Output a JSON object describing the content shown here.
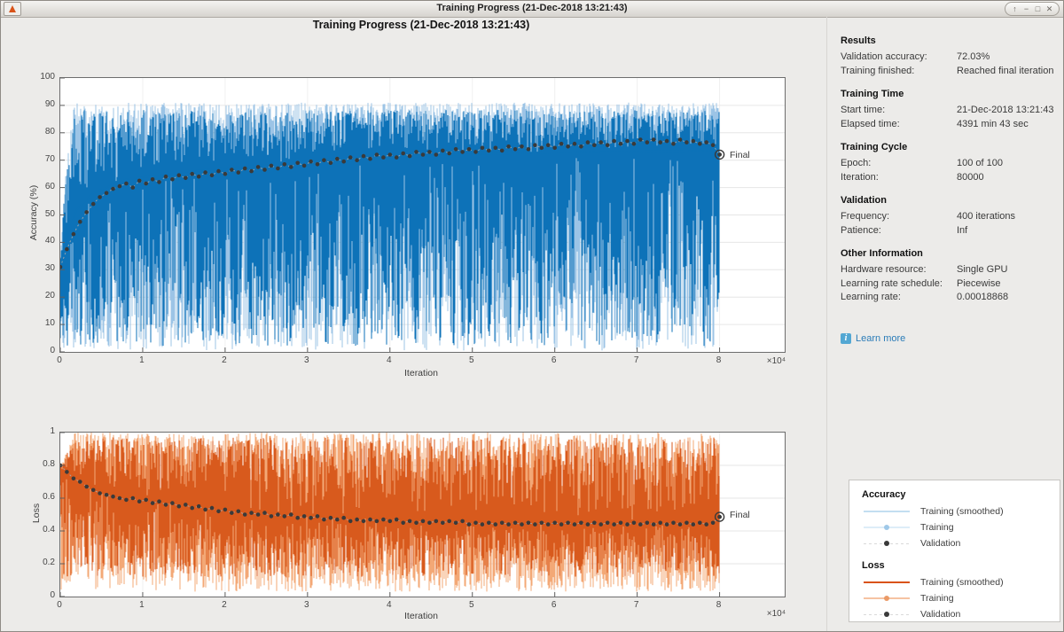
{
  "window": {
    "title": "Training Progress (21-Dec-2018 13:21:43)",
    "control_glyphs": {
      "shade": "↑",
      "minimize": "−",
      "maximize": "□",
      "close": "✕"
    }
  },
  "figure_title": "Training Progress (21-Dec-2018 13:21:43)",
  "colors": {
    "background": "#ecebe9",
    "accuracy_raw": "#9cc4e6",
    "accuracy_smoothed": "#0d72b8",
    "loss_raw": "#f3a876",
    "loss_smoothed": "#d85a1d",
    "validation_marker": "#3a3a3a",
    "link": "#2b7cb8"
  },
  "right_panel": {
    "sections": [
      {
        "heading": "Results",
        "rows": [
          [
            "Validation accuracy:",
            "72.03%"
          ],
          [
            "Training finished:",
            "Reached final iteration"
          ]
        ]
      },
      {
        "heading": "Training Time",
        "rows": [
          [
            "Start time:",
            "21-Dec-2018 13:21:43"
          ],
          [
            "Elapsed time:",
            "4391 min 43 sec"
          ]
        ]
      },
      {
        "heading": "Training Cycle",
        "rows": [
          [
            "Epoch:",
            "100 of 100"
          ],
          [
            "Iteration:",
            "80000"
          ]
        ]
      },
      {
        "heading": "Validation",
        "rows": [
          [
            "Frequency:",
            "400 iterations"
          ],
          [
            "Patience:",
            "Inf"
          ]
        ]
      },
      {
        "heading": "Other Information",
        "rows": [
          [
            "Hardware resource:",
            "Single GPU"
          ],
          [
            "Learning rate schedule:",
            "Piecewise"
          ],
          [
            "Learning rate:",
            "0.00018868"
          ]
        ]
      }
    ],
    "learn_more": "Learn more"
  },
  "legend": {
    "groups": [
      {
        "heading": "Accuracy",
        "entries": [
          {
            "label": "Training (smoothed)",
            "style": "line",
            "color": "#c3def1"
          },
          {
            "label": "Training",
            "style": "line-dot",
            "color": "#ddedf8",
            "dot": "#9fc8e8"
          },
          {
            "label": "Validation",
            "style": "dash-dot",
            "color": "#d9d9d9",
            "dot": "#3a3a3a"
          }
        ]
      },
      {
        "heading": "Loss",
        "entries": [
          {
            "label": "Training (smoothed)",
            "style": "line",
            "color": "#d95319"
          },
          {
            "label": "Training",
            "style": "line-dot",
            "color": "#f6c3a2",
            "dot": "#eb9a67"
          },
          {
            "label": "Validation",
            "style": "dash-dot",
            "color": "#d9d9d9",
            "dot": "#3a3a3a"
          }
        ]
      }
    ]
  },
  "chart_data": [
    {
      "type": "line",
      "title": "",
      "ylabel": "Accuracy (%)",
      "xlabel": "Iteration",
      "x_exponent_label": "×10⁴",
      "final_label": "Final",
      "final_value": 72.03,
      "ylim": [
        0,
        100
      ],
      "xlim": [
        0,
        87900
      ],
      "grid": true,
      "y_ticks": [
        0,
        10,
        20,
        30,
        40,
        50,
        60,
        70,
        80,
        90,
        100
      ],
      "y_tick_labels": [
        "0",
        "10",
        "20",
        "30",
        "40",
        "50",
        "60",
        "70",
        "80",
        "90",
        "100"
      ],
      "x_ticks": [
        0,
        10000,
        20000,
        30000,
        40000,
        50000,
        60000,
        70000,
        80000
      ],
      "x_tick_labels": [
        "0",
        "1",
        "2",
        "3",
        "4",
        "5",
        "6",
        "7",
        "8"
      ],
      "trend": [
        [
          0,
          30
        ],
        [
          800,
          42
        ],
        [
          2000,
          52
        ],
        [
          4000,
          58
        ],
        [
          8000,
          63
        ],
        [
          16000,
          66
        ],
        [
          24000,
          68
        ],
        [
          32000,
          70
        ],
        [
          48000,
          72
        ],
        [
          64000,
          73
        ],
        [
          80000,
          73.5
        ]
      ],
      "noise": {
        "seed": 91,
        "upper_limit": 91,
        "lower_limit": 0.5
      },
      "series": [
        {
          "name": "Training",
          "type": "noisy-raw",
          "color": "#9cc4e6"
        },
        {
          "name": "Training (smoothed)",
          "type": "noisy-smoothed",
          "color": "#0d72b8"
        },
        {
          "name": "Validation",
          "type": "points",
          "color": "#3a3a3a",
          "step": 800,
          "values": [
            31,
            37.5,
            43,
            47.5,
            51,
            54,
            56.5,
            58,
            59.5,
            60.5,
            61.5,
            60,
            62.5,
            61.5,
            63,
            62,
            64,
            63,
            64.5,
            63.5,
            65,
            64,
            65.5,
            64.5,
            66,
            65,
            66.5,
            65.5,
            67,
            66,
            67.5,
            66.5,
            68,
            67,
            68.5,
            67.5,
            69,
            68,
            69.5,
            68.5,
            70,
            69,
            70.5,
            69.5,
            71,
            70,
            71.5,
            70.5,
            72,
            71,
            72,
            71,
            72.5,
            71.5,
            73,
            72,
            73,
            72,
            73.5,
            72.5,
            74,
            73,
            74,
            73,
            74.5,
            73.5,
            74.5,
            73.5,
            75,
            74,
            75,
            74,
            75.5,
            74.5,
            75.5,
            74.5,
            76,
            75,
            76,
            75,
            76.5,
            75.5,
            76.5,
            75.5,
            77,
            76,
            77,
            76,
            77.5,
            76.5,
            77.5,
            76.5,
            77,
            76,
            77.5,
            76.5,
            77,
            76,
            76.5,
            75.5,
            72.03
          ]
        }
      ]
    },
    {
      "type": "line",
      "title": "",
      "ylabel": "Loss",
      "xlabel": "Iteration",
      "x_exponent_label": "×10⁴",
      "final_label": "Final",
      "final_value": 0.486,
      "ylim": [
        0,
        1
      ],
      "xlim": [
        0,
        87900
      ],
      "grid": true,
      "y_ticks": [
        0,
        0.2,
        0.4,
        0.6,
        0.8,
        1
      ],
      "y_tick_labels": [
        "0",
        "0.2",
        "0.4",
        "0.6",
        "0.8",
        "1"
      ],
      "x_ticks": [
        0,
        10000,
        20000,
        30000,
        40000,
        50000,
        60000,
        70000,
        80000
      ],
      "x_tick_labels": [
        "0",
        "1",
        "2",
        "3",
        "4",
        "5",
        "6",
        "7",
        "8"
      ],
      "trend": [
        [
          0,
          0.78
        ],
        [
          2000,
          0.7
        ],
        [
          6000,
          0.63
        ],
        [
          12000,
          0.58
        ],
        [
          20000,
          0.53
        ],
        [
          32000,
          0.49
        ],
        [
          48000,
          0.46
        ],
        [
          64000,
          0.45
        ],
        [
          80000,
          0.45
        ]
      ],
      "noise": {
        "seed": 47,
        "upper_limit": 1.0,
        "lower_limit": 0.03
      },
      "series": [
        {
          "name": "Training",
          "type": "noisy-raw",
          "color": "#f3a876"
        },
        {
          "name": "Training (smoothed)",
          "type": "noisy-smoothed",
          "color": "#d85a1d"
        },
        {
          "name": "Validation",
          "type": "points",
          "color": "#3a3a3a",
          "step": 800,
          "values": [
            0.8,
            0.76,
            0.72,
            0.7,
            0.67,
            0.65,
            0.63,
            0.62,
            0.61,
            0.6,
            0.59,
            0.6,
            0.58,
            0.59,
            0.57,
            0.58,
            0.56,
            0.57,
            0.55,
            0.56,
            0.54,
            0.55,
            0.53,
            0.54,
            0.52,
            0.53,
            0.51,
            0.52,
            0.5,
            0.51,
            0.5,
            0.51,
            0.49,
            0.5,
            0.49,
            0.5,
            0.48,
            0.49,
            0.48,
            0.49,
            0.47,
            0.48,
            0.47,
            0.48,
            0.46,
            0.47,
            0.46,
            0.47,
            0.46,
            0.47,
            0.46,
            0.47,
            0.45,
            0.46,
            0.45,
            0.46,
            0.45,
            0.46,
            0.45,
            0.46,
            0.45,
            0.46,
            0.44,
            0.45,
            0.44,
            0.45,
            0.44,
            0.45,
            0.44,
            0.45,
            0.44,
            0.45,
            0.44,
            0.45,
            0.44,
            0.45,
            0.44,
            0.45,
            0.44,
            0.45,
            0.44,
            0.45,
            0.44,
            0.45,
            0.44,
            0.45,
            0.44,
            0.45,
            0.44,
            0.45,
            0.44,
            0.45,
            0.44,
            0.45,
            0.44,
            0.45,
            0.44,
            0.45,
            0.44,
            0.45,
            0.486
          ]
        }
      ]
    }
  ]
}
